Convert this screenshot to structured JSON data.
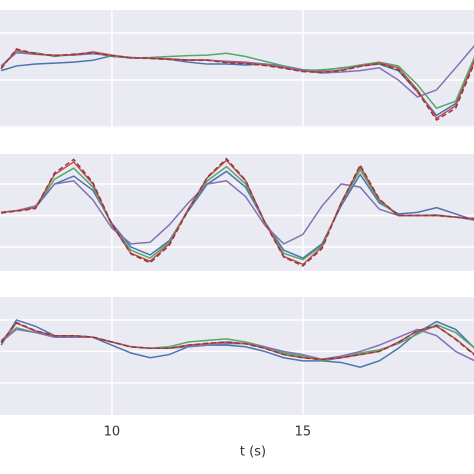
{
  "chart_data": [
    {
      "type": "line",
      "xlim": [
        7.07,
        19.48
      ],
      "ylim": [
        -1.02,
        1.49
      ],
      "ygrid": [
        1,
        0,
        -1
      ],
      "grid": true,
      "x": [
        7.1,
        7.5,
        8,
        8.5,
        9,
        9.5,
        10,
        10.5,
        11,
        11.5,
        12,
        12.5,
        13,
        13.5,
        14,
        14.5,
        15,
        15.5,
        16,
        16.5,
        17,
        17.5,
        18,
        18.5,
        19,
        19.5
      ],
      "series": [
        {
          "color": "#4c72b0",
          "values": [
            0.2,
            0.3,
            0.34,
            0.36,
            0.38,
            0.42,
            0.52,
            0.48,
            0.46,
            0.44,
            0.38,
            0.34,
            0.34,
            0.32,
            0.34,
            0.3,
            0.22,
            0.2,
            0.26,
            0.3,
            0.34,
            0.2,
            -0.25,
            -0.75,
            -0.5,
            0.42
          ]
        },
        {
          "color": "#55a868",
          "values": [
            0.3,
            0.6,
            0.58,
            0.5,
            0.55,
            0.58,
            0.5,
            0.47,
            0.48,
            0.5,
            0.52,
            0.53,
            0.57,
            0.5,
            0.4,
            0.3,
            0.2,
            0.22,
            0.25,
            0.32,
            0.38,
            0.3,
            -0.1,
            -0.6,
            -0.45,
            0.5
          ]
        },
        {
          "color": "#8172b2",
          "values": [
            0.3,
            0.58,
            0.55,
            0.52,
            0.53,
            0.56,
            0.52,
            0.48,
            0.46,
            0.44,
            0.42,
            0.42,
            0.4,
            0.38,
            0.34,
            0.28,
            0.2,
            0.15,
            0.17,
            0.2,
            0.26,
            0.0,
            -0.36,
            -0.21,
            0.26,
            0.74
          ]
        },
        {
          "color": "#c44e52",
          "values": [
            0.26,
            0.64,
            0.55,
            0.53,
            0.53,
            0.6,
            0.53,
            0.47,
            0.47,
            0.45,
            0.43,
            0.43,
            0.38,
            0.36,
            0.32,
            0.26,
            0.19,
            0.17,
            0.21,
            0.3,
            0.36,
            0.26,
            -0.21,
            -0.81,
            -0.55,
            0.43
          ]
        },
        {
          "color": "#8c3b3f",
          "dashed": true,
          "values": [
            0.24,
            0.66,
            0.56,
            0.52,
            0.55,
            0.58,
            0.52,
            0.47,
            0.46,
            0.44,
            0.42,
            0.42,
            0.37,
            0.35,
            0.31,
            0.25,
            0.18,
            0.16,
            0.2,
            0.29,
            0.35,
            0.22,
            -0.25,
            -0.85,
            -0.6,
            0.38
          ]
        }
      ]
    },
    {
      "type": "line",
      "xlim": [
        7.07,
        19.48
      ],
      "ylim": [
        -1.76,
        1.95
      ],
      "ygrid": [
        1,
        0,
        -1
      ],
      "grid": true,
      "x": [
        7.1,
        7.5,
        8,
        8.5,
        9,
        9.5,
        10,
        10.5,
        11,
        11.5,
        12,
        12.5,
        13,
        13.5,
        14,
        14.5,
        15,
        15.5,
        16,
        16.5,
        17,
        17.5,
        18,
        18.5,
        19,
        19.5
      ],
      "series": [
        {
          "color": "#4c72b0",
          "values": [
            0.1,
            0.15,
            0.25,
            1.0,
            1.25,
            0.8,
            -0.25,
            -1.0,
            -1.25,
            -0.8,
            0.15,
            1.0,
            1.4,
            0.9,
            -0.2,
            -1.1,
            -1.35,
            -0.9,
            0.3,
            1.3,
            0.4,
            0.05,
            0.1,
            0.25,
            0.05,
            -0.15
          ]
        },
        {
          "color": "#55a868",
          "values": [
            0.1,
            0.15,
            0.25,
            1.15,
            1.5,
            0.9,
            -0.3,
            -1.1,
            -1.35,
            -0.85,
            0.2,
            1.1,
            1.55,
            1.0,
            -0.2,
            -1.2,
            -1.4,
            -0.95,
            0.35,
            1.45,
            0.45,
            0.0,
            0.0,
            0.02,
            -0.05,
            -0.1
          ]
        },
        {
          "color": "#8172b2",
          "values": [
            0.1,
            0.15,
            0.3,
            1.0,
            1.1,
            0.5,
            -0.4,
            -0.9,
            -0.85,
            -0.3,
            0.4,
            1.0,
            1.1,
            0.6,
            -0.3,
            -0.9,
            -0.6,
            0.3,
            1.0,
            0.9,
            0.2,
            0.0,
            0.0,
            0.0,
            -0.05,
            -0.15
          ]
        },
        {
          "color": "#c44e52",
          "values": [
            0.1,
            0.15,
            0.25,
            1.3,
            1.7,
            1.0,
            -0.3,
            -1.2,
            -1.45,
            -0.9,
            0.2,
            1.2,
            1.75,
            1.1,
            -0.2,
            -1.3,
            -1.55,
            -1.0,
            0.4,
            1.55,
            0.5,
            0.0,
            0.0,
            0.0,
            -0.05,
            -0.1
          ]
        },
        {
          "color": "#8c3b3f",
          "dashed": true,
          "values": [
            0.08,
            0.14,
            0.22,
            1.35,
            1.78,
            1.05,
            -0.28,
            -1.22,
            -1.5,
            -0.95,
            0.18,
            1.22,
            1.8,
            1.12,
            -0.22,
            -1.32,
            -1.6,
            -1.05,
            0.38,
            1.6,
            0.52,
            0.0,
            0.0,
            0.0,
            -0.05,
            -0.1
          ]
        }
      ]
    },
    {
      "type": "line",
      "xlim": [
        7.07,
        19.48
      ],
      "ylim": [
        -2.02,
        1.73
      ],
      "ygrid": [
        1,
        0,
        -1
      ],
      "grid": true,
      "xticks": [
        10,
        15
      ],
      "xlabel": "t (s)",
      "x": [
        7.1,
        7.5,
        8,
        8.5,
        9,
        9.5,
        10,
        10.5,
        11,
        11.5,
        12,
        12.5,
        13,
        13.5,
        14,
        14.5,
        15,
        15.5,
        16,
        16.5,
        17,
        17.5,
        18,
        18.5,
        19,
        19.5
      ],
      "series": [
        {
          "color": "#4c72b0",
          "values": [
            0.2,
            1.0,
            0.8,
            0.5,
            0.5,
            0.45,
            0.2,
            -0.05,
            -0.2,
            -0.1,
            0.15,
            0.2,
            0.2,
            0.15,
            0.0,
            -0.2,
            -0.3,
            -0.3,
            -0.35,
            -0.5,
            -0.3,
            0.1,
            0.6,
            0.95,
            0.7,
            0.1
          ]
        },
        {
          "color": "#55a868",
          "values": [
            0.35,
            0.75,
            0.6,
            0.5,
            0.5,
            0.45,
            0.3,
            0.15,
            0.1,
            0.15,
            0.3,
            0.35,
            0.4,
            0.3,
            0.15,
            -0.05,
            -0.15,
            -0.3,
            -0.2,
            -0.05,
            0.05,
            0.25,
            0.55,
            0.85,
            0.6,
            0.1
          ]
        },
        {
          "color": "#8172b2",
          "values": [
            0.3,
            0.7,
            0.6,
            0.45,
            0.45,
            0.45,
            0.3,
            0.15,
            0.1,
            0.1,
            0.15,
            0.2,
            0.25,
            0.25,
            0.15,
            0.0,
            -0.1,
            -0.25,
            -0.15,
            0.0,
            0.2,
            0.45,
            0.7,
            0.5,
            0.0,
            -0.3
          ]
        },
        {
          "color": "#c44e52",
          "values": [
            0.3,
            0.9,
            0.65,
            0.5,
            0.5,
            0.45,
            0.3,
            0.15,
            0.1,
            0.1,
            0.2,
            0.25,
            0.3,
            0.25,
            0.1,
            -0.1,
            -0.2,
            -0.25,
            -0.2,
            -0.1,
            0.0,
            0.3,
            0.65,
            0.8,
            0.4,
            -0.1
          ]
        },
        {
          "color": "#8c3b3f",
          "dashed": true,
          "values": [
            0.28,
            0.92,
            0.66,
            0.5,
            0.5,
            0.46,
            0.3,
            0.14,
            0.1,
            0.1,
            0.2,
            0.26,
            0.3,
            0.24,
            0.1,
            -0.1,
            -0.2,
            -0.26,
            -0.2,
            -0.1,
            0.0,
            0.28,
            0.66,
            0.82,
            0.38,
            -0.12
          ]
        }
      ]
    }
  ]
}
